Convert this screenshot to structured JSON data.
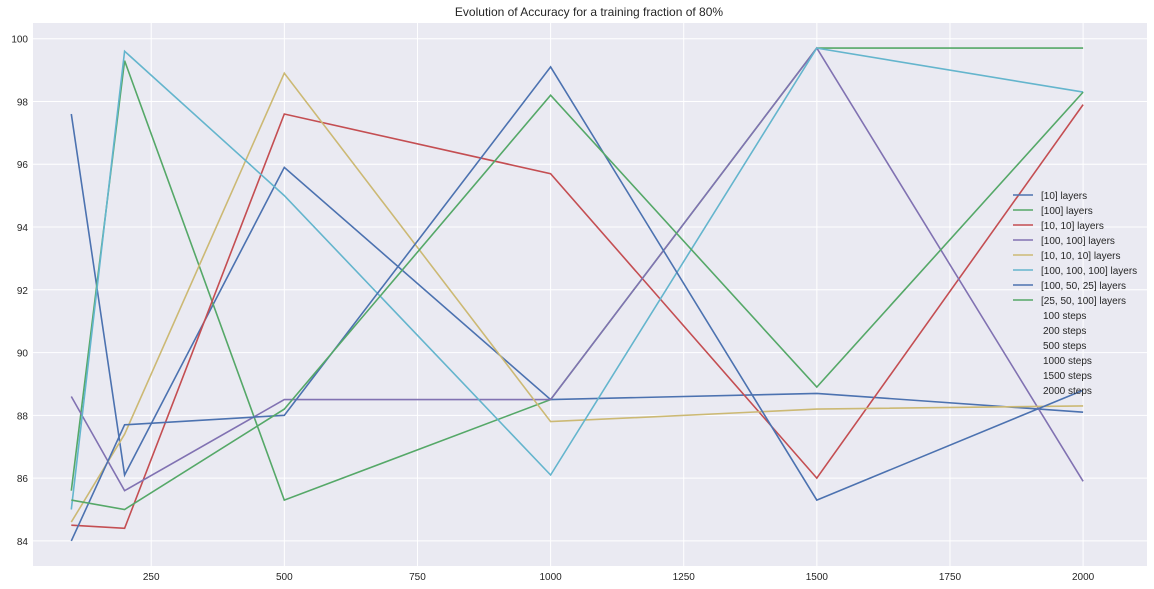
{
  "chart_data": {
    "type": "line",
    "title": "Evolution of Accuracy for a training fraction of 80%",
    "xlabel": "",
    "ylabel": "",
    "xlim": [
      28,
      2120
    ],
    "ylim": [
      83.2,
      100.5
    ],
    "xticks": [
      250,
      500,
      750,
      1000,
      1250,
      1500,
      1750,
      2000
    ],
    "yticks": [
      84,
      86,
      88,
      90,
      92,
      94,
      96,
      98,
      100
    ],
    "grid": true,
    "legend_position": "center-right",
    "x": [
      100,
      200,
      500,
      1000,
      1500,
      2000
    ],
    "series": [
      {
        "name": "[10] layers",
        "color": "#4c72b0",
        "values": [
          97.6,
          86.1,
          95.9,
          88.5,
          88.7,
          88.1
        ]
      },
      {
        "name": "[100] layers",
        "color": "#55a868",
        "values": [
          85.6,
          99.3,
          85.3,
          88.5,
          99.7,
          99.7
        ]
      },
      {
        "name": "[10, 10] layers",
        "color": "#c44e52",
        "values": [
          84.5,
          84.4,
          97.6,
          95.7,
          86.0,
          97.9
        ]
      },
      {
        "name": "[100, 100] layers",
        "color": "#8172b2",
        "values": [
          88.6,
          85.6,
          88.5,
          88.5,
          99.7,
          85.9
        ]
      },
      {
        "name": "[10, 10, 10] layers",
        "color": "#ccb974",
        "values": [
          84.6,
          87.4,
          98.9,
          87.8,
          88.2,
          88.3
        ]
      },
      {
        "name": "[100, 100, 100] layers",
        "color": "#64b5cd",
        "values": [
          85.0,
          99.6,
          95.0,
          86.1,
          99.7,
          98.3
        ]
      },
      {
        "name": "[100, 50, 25] layers",
        "color": "#4c72b0",
        "values": [
          84.0,
          87.7,
          88.0,
          99.1,
          85.3,
          88.8
        ]
      },
      {
        "name": "[25, 50, 100] layers",
        "color": "#55a868",
        "values": [
          85.3,
          85.0,
          88.2,
          98.2,
          88.9,
          98.3
        ]
      }
    ],
    "extra_legend_entries": [
      "100 steps",
      "200 steps",
      "500 steps",
      "1000 steps",
      "1500 steps",
      "2000 steps"
    ],
    "colors": {
      "plot_background": "#eaeaf2",
      "grid": "#ffffff",
      "text": "#262626"
    }
  }
}
